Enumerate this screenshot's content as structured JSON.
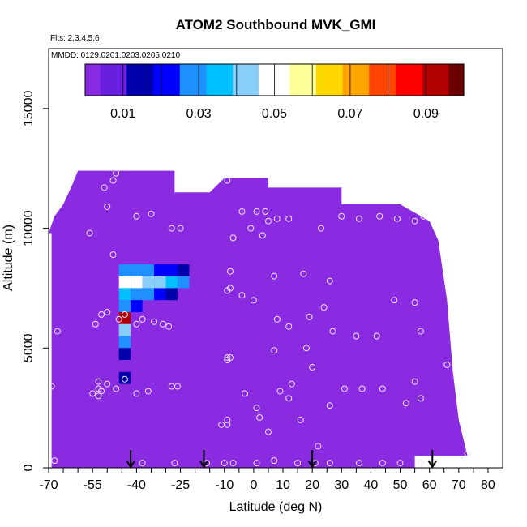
{
  "chart_data": {
    "type": "heatmap",
    "title": "ATOM2 Southbound MVK_GMI",
    "annotations": [
      "Flts: 2,3,4,5,6",
      "MMDD: 0129,0201,0203,0205,0210"
    ],
    "xlabel": "Latitude (deg N)",
    "ylabel": "Altitude (m)",
    "xlim": [
      -70,
      85
    ],
    "ylim": [
      0,
      17500
    ],
    "x_ticks_major": [
      -70,
      -55,
      -40,
      -25,
      -10,
      0,
      10,
      20,
      30,
      40,
      50,
      60,
      70,
      80
    ],
    "x_tick_labels": [
      "-70",
      "-55",
      "-40",
      "-25",
      "-10",
      "0",
      "10",
      "20",
      "30",
      "40",
      "50",
      "60",
      "70",
      "80"
    ],
    "y_ticks": [
      0,
      5000,
      10000,
      15000
    ],
    "y_tick_labels": [
      "0",
      "5000",
      "10000",
      "15000"
    ],
    "colorbar": {
      "range": [
        0,
        0.1
      ],
      "tick_values": [
        0.01,
        0.03,
        0.05,
        0.07,
        0.09
      ],
      "tick_labels": [
        "0.01",
        "0.03",
        "0.05",
        "0.07",
        "0.09"
      ],
      "stops": [
        "#8a2be2",
        "#6a1ee0",
        "#0000aa",
        "#0000ff",
        "#1e90ff",
        "#00bfff",
        "#87cefa",
        "#ffffff",
        "#ffff99",
        "#ffd700",
        "#ffa500",
        "#ff4500",
        "#ff0000",
        "#b00000",
        "#6b0000"
      ]
    },
    "background_value_color": "#8a2be2",
    "domain_outline_alt_top_m": [
      [
        -70,
        9800
      ],
      [
        -68,
        10500
      ],
      [
        -65,
        11000
      ],
      [
        -62,
        11800
      ],
      [
        -60,
        12400
      ],
      [
        -45,
        12400
      ],
      [
        -35,
        12400
      ],
      [
        -27,
        12400
      ],
      [
        -27,
        11500
      ],
      [
        -15,
        11500
      ],
      [
        -10,
        12100
      ],
      [
        5,
        12100
      ],
      [
        5,
        11700
      ],
      [
        30,
        11700
      ],
      [
        30,
        11000
      ],
      [
        50,
        11000
      ],
      [
        60,
        10300
      ],
      [
        63,
        9500
      ],
      [
        66,
        7000
      ],
      [
        68,
        4000
      ],
      [
        70,
        2000
      ],
      [
        73,
        500
      ],
      [
        73,
        500
      ]
    ],
    "enhanced_region": {
      "description_cells": [
        {
          "lat": -44,
          "alt": 7750,
          "value": 0.05
        },
        {
          "lat": -40,
          "alt": 7750,
          "value": 0.048
        },
        {
          "lat": -36,
          "alt": 7750,
          "value": 0.045
        },
        {
          "lat": -32,
          "alt": 7750,
          "value": 0.04
        },
        {
          "lat": -28,
          "alt": 7750,
          "value": 0.035
        },
        {
          "lat": -24,
          "alt": 7750,
          "value": 0.03
        },
        {
          "lat": -44,
          "alt": 8250,
          "value": 0.03
        },
        {
          "lat": -40,
          "alt": 8250,
          "value": 0.028
        },
        {
          "lat": -36,
          "alt": 8250,
          "value": 0.025
        },
        {
          "lat": -32,
          "alt": 8250,
          "value": 0.022
        },
        {
          "lat": -28,
          "alt": 8250,
          "value": 0.018
        },
        {
          "lat": -24,
          "alt": 8250,
          "value": 0.012
        },
        {
          "lat": -44,
          "alt": 7250,
          "value": 0.035
        },
        {
          "lat": -40,
          "alt": 7250,
          "value": 0.032
        },
        {
          "lat": -36,
          "alt": 7250,
          "value": 0.028
        },
        {
          "lat": -32,
          "alt": 7250,
          "value": 0.022
        },
        {
          "lat": -28,
          "alt": 7250,
          "value": 0.015
        },
        {
          "lat": -44,
          "alt": 6750,
          "value": 0.025
        },
        {
          "lat": -40,
          "alt": 6750,
          "value": 0.02
        },
        {
          "lat": -44,
          "alt": 6250,
          "value": 0.09
        },
        {
          "lat": -44,
          "alt": 5750,
          "value": 0.04
        },
        {
          "lat": -44,
          "alt": 5250,
          "value": 0.025
        },
        {
          "lat": -44,
          "alt": 4750,
          "value": 0.015
        },
        {
          "lat": -44,
          "alt": 3750,
          "value": 0.012
        }
      ]
    },
    "obs_points": [
      [
        -67,
        5700
      ],
      [
        -69,
        3400
      ],
      [
        -68,
        300
      ],
      [
        -56,
        9800
      ],
      [
        -51,
        11700
      ],
      [
        -47,
        12300
      ],
      [
        -50,
        10900
      ],
      [
        -48,
        12000
      ],
      [
        -40,
        10500
      ],
      [
        -35,
        10600
      ],
      [
        -28,
        10000
      ],
      [
        -25,
        10000
      ],
      [
        -48,
        8900
      ],
      [
        -52,
        6400
      ],
      [
        -54,
        6000
      ],
      [
        -50,
        6500
      ],
      [
        -46,
        6200
      ],
      [
        -44,
        6400
      ],
      [
        -40,
        6000
      ],
      [
        -38,
        6200
      ],
      [
        -34,
        6100
      ],
      [
        -31,
        6000
      ],
      [
        -29,
        5900
      ],
      [
        -53,
        3600
      ],
      [
        -52,
        3200
      ],
      [
        -50,
        3500
      ],
      [
        -47,
        3300
      ],
      [
        -44,
        3700
      ],
      [
        -36,
        3200
      ],
      [
        -28,
        3400
      ],
      [
        -26,
        3400
      ],
      [
        -53,
        3000
      ],
      [
        -55,
        3100
      ],
      [
        -53,
        3300
      ],
      [
        -40,
        3100
      ],
      [
        -38,
        200
      ],
      [
        -27,
        200
      ],
      [
        -16,
        200
      ],
      [
        -10,
        200
      ],
      [
        -7,
        200
      ],
      [
        1,
        200
      ],
      [
        7,
        300
      ],
      [
        15,
        200
      ],
      [
        21,
        200
      ],
      [
        26,
        200
      ],
      [
        36,
        200
      ],
      [
        44,
        200
      ],
      [
        50,
        200
      ],
      [
        57,
        200
      ],
      [
        73,
        600
      ],
      [
        -9,
        12000
      ],
      [
        -4,
        10700
      ],
      [
        1,
        10700
      ],
      [
        4,
        10700
      ],
      [
        5,
        10300
      ],
      [
        8,
        10400
      ],
      [
        12,
        10400
      ],
      [
        23,
        10000
      ],
      [
        30,
        10500
      ],
      [
        36,
        10400
      ],
      [
        43,
        10500
      ],
      [
        49,
        10400
      ],
      [
        55,
        10300
      ],
      [
        58,
        10500
      ],
      [
        -1,
        10000
      ],
      [
        3,
        9700
      ],
      [
        -7,
        9600
      ],
      [
        -8,
        8200
      ],
      [
        -9,
        7400
      ],
      [
        -4,
        7200
      ],
      [
        -8,
        7500
      ],
      [
        0,
        7000
      ],
      [
        7,
        8000
      ],
      [
        17,
        8100
      ],
      [
        26,
        7800
      ],
      [
        24,
        6700
      ],
      [
        8,
        6200
      ],
      [
        12,
        5900
      ],
      [
        19,
        6300
      ],
      [
        27,
        5700
      ],
      [
        35,
        5500
      ],
      [
        42,
        5500
      ],
      [
        48,
        7000
      ],
      [
        55,
        6900
      ],
      [
        57,
        5700
      ],
      [
        -9,
        4500
      ],
      [
        -8,
        4600
      ],
      [
        -9,
        4600
      ],
      [
        7,
        4900
      ],
      [
        18,
        5000
      ],
      [
        20,
        4200
      ],
      [
        13,
        3500
      ],
      [
        -3,
        3100
      ],
      [
        9,
        3200
      ],
      [
        31,
        3300
      ],
      [
        37,
        3300
      ],
      [
        44,
        3300
      ],
      [
        55,
        3600
      ],
      [
        52,
        2700
      ],
      [
        57,
        2900
      ],
      [
        12,
        2900
      ],
      [
        1,
        2500
      ],
      [
        2,
        2100
      ],
      [
        5,
        1500
      ],
      [
        16,
        2000
      ],
      [
        26,
        2600
      ],
      [
        -9,
        1800
      ],
      [
        -11,
        1800
      ],
      [
        -9,
        2000
      ],
      [
        22,
        900
      ],
      [
        66,
        4300
      ]
    ],
    "flight_arrows_lat": [
      -42,
      -17,
      20,
      61
    ]
  }
}
